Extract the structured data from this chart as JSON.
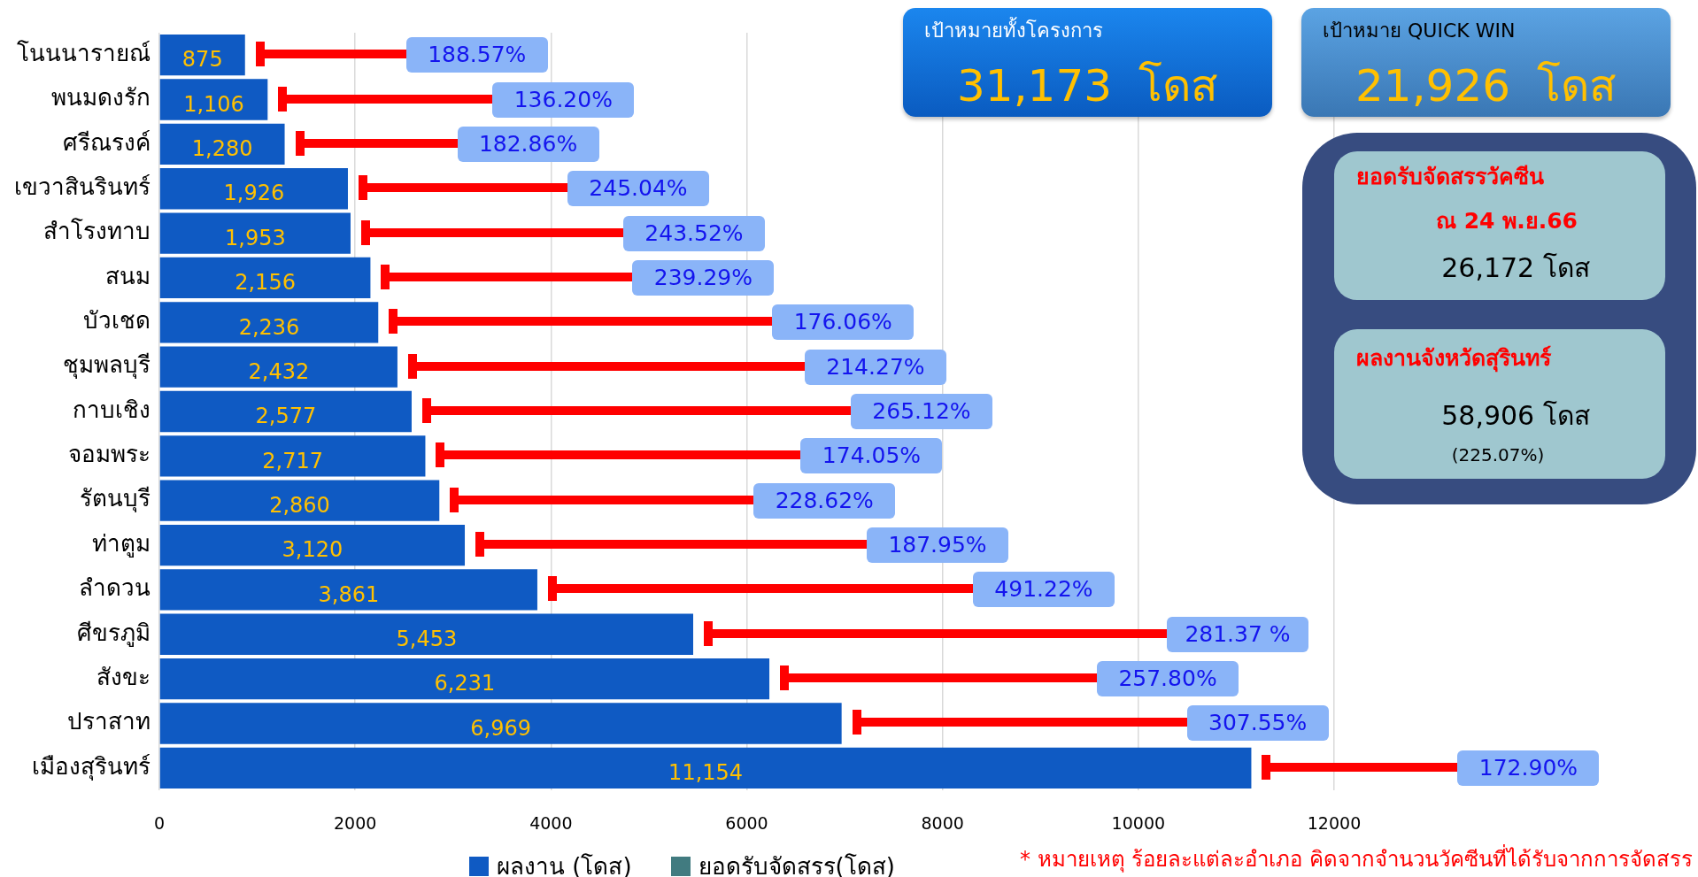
{
  "chart_data": [
    {
      "type": "bar",
      "orientation": "horizontal",
      "categories": [
        "โนนนารายณ์",
        "พนมดงรัก",
        "ศรีณรงค์",
        "เขวาสินรินทร์",
        "สำโรงทาบ",
        "สนม",
        "บัวเชด",
        "ชุมพลบุรี",
        "กาบเชิง",
        "จอมพระ",
        "รัตนบุรี",
        "ท่าตูม",
        "ลำดวน",
        "ศีขรภูมิ",
        "สังขะ",
        "ปราสาท",
        "เมืองสุรินทร์"
      ],
      "series": [
        {
          "name": "ผลงาน (โดส)",
          "color": "#0f5ac3",
          "values": [
            875,
            1106,
            1280,
            1926,
            1953,
            2156,
            2236,
            2432,
            2577,
            2717,
            2860,
            3120,
            3861,
            5453,
            6231,
            6969,
            11154
          ],
          "value_labels": [
            "875",
            "1,106",
            "1,280",
            "1,926",
            "1,953",
            "2,156",
            "2,236",
            "2,432",
            "2,577",
            "2,717",
            "2,860",
            "3,120",
            "3,861",
            "5,453",
            "6,231",
            "6,969",
            "11,154"
          ]
        },
        {
          "name": "ยอดรับจัดสรร(โดส)",
          "color": "#417b80",
          "values": [
            null,
            null,
            null,
            null,
            null,
            null,
            null,
            null,
            null,
            null,
            null,
            null,
            null,
            null,
            null,
            null,
            null
          ]
        }
      ],
      "xlim": [
        0,
        12000
      ],
      "xticks": [
        0,
        2000,
        4000,
        6000,
        8000,
        10000,
        12000
      ],
      "grid": "x",
      "legend": "bottom",
      "annotations": [
        "188.57%",
        "136.20%",
        "182.86%",
        "245.04%",
        "243.52%",
        "239.29%",
        "176.06%",
        "214.27%",
        "265.12%",
        "174.05%",
        "228.62%",
        "187.95%",
        "491.22%",
        "281.37 %",
        "257.80%",
        "307.55%",
        "172.90%",
        "* หมายเหตุ ร้อยละแต่ละอำเภอ คิดจากจำนวนวัคซีนที่ได้รับจากการจัดสรร"
      ]
    },
    {
      "type": "other",
      "title": "เป้าหมายทั้งโครงการ",
      "annotations": [
        "31,173 โดส"
      ]
    },
    {
      "type": "other",
      "title": "เป้าหมาย QUICK WIN",
      "annotations": [
        "21,926 โดส"
      ]
    },
    {
      "type": "other",
      "title": "ยอดรับจัดสรรวัคซีน",
      "subtitle": "ณ 24 พ.ย.66",
      "annotations": [
        "26,172 โดส"
      ]
    },
    {
      "type": "other",
      "title": "ผลงานจังหวัดสุรินทร์",
      "annotations": [
        "58,906 โดส",
        "(225.07%)"
      ]
    }
  ]
}
